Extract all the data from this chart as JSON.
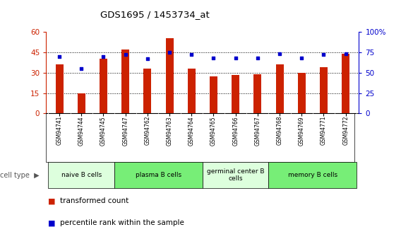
{
  "title": "GDS1695 / 1453734_at",
  "samples": [
    "GSM94741",
    "GSM94744",
    "GSM94745",
    "GSM94747",
    "GSM94762",
    "GSM94763",
    "GSM94764",
    "GSM94765",
    "GSM94766",
    "GSM94767",
    "GSM94768",
    "GSM94769",
    "GSM94771",
    "GSM94772"
  ],
  "transformed_count": [
    36,
    15,
    40,
    47,
    33,
    55,
    33,
    27,
    28,
    29,
    36,
    30,
    34,
    44
  ],
  "percentile_rank": [
    70,
    55,
    70,
    72,
    67,
    75,
    72,
    68,
    68,
    68,
    73,
    68,
    72,
    73
  ],
  "bar_color": "#cc2200",
  "dot_color": "#0000cc",
  "ylim_left": [
    0,
    60
  ],
  "ylim_right": [
    0,
    100
  ],
  "yticks_left": [
    0,
    15,
    30,
    45,
    60
  ],
  "yticks_right": [
    0,
    25,
    50,
    75,
    100
  ],
  "ytick_labels_left": [
    "0",
    "15",
    "30",
    "45",
    "60"
  ],
  "ytick_labels_right": [
    "0",
    "25",
    "50",
    "75",
    "100%"
  ],
  "cell_groups": [
    {
      "label": "naive B cells",
      "start": 0,
      "end": 2,
      "color": "#ddffdd"
    },
    {
      "label": "plasma B cells",
      "start": 3,
      "end": 6,
      "color": "#77ee77"
    },
    {
      "label": "germinal center B\ncells",
      "start": 7,
      "end": 9,
      "color": "#ddffdd"
    },
    {
      "label": "memory B cells",
      "start": 10,
      "end": 13,
      "color": "#77ee77"
    }
  ],
  "legend_bar_label": "transformed count",
  "legend_dot_label": "percentile rank within the sample",
  "cell_type_label": "cell type",
  "xtick_bg": "#cccccc",
  "plot_bg": "#ffffff"
}
